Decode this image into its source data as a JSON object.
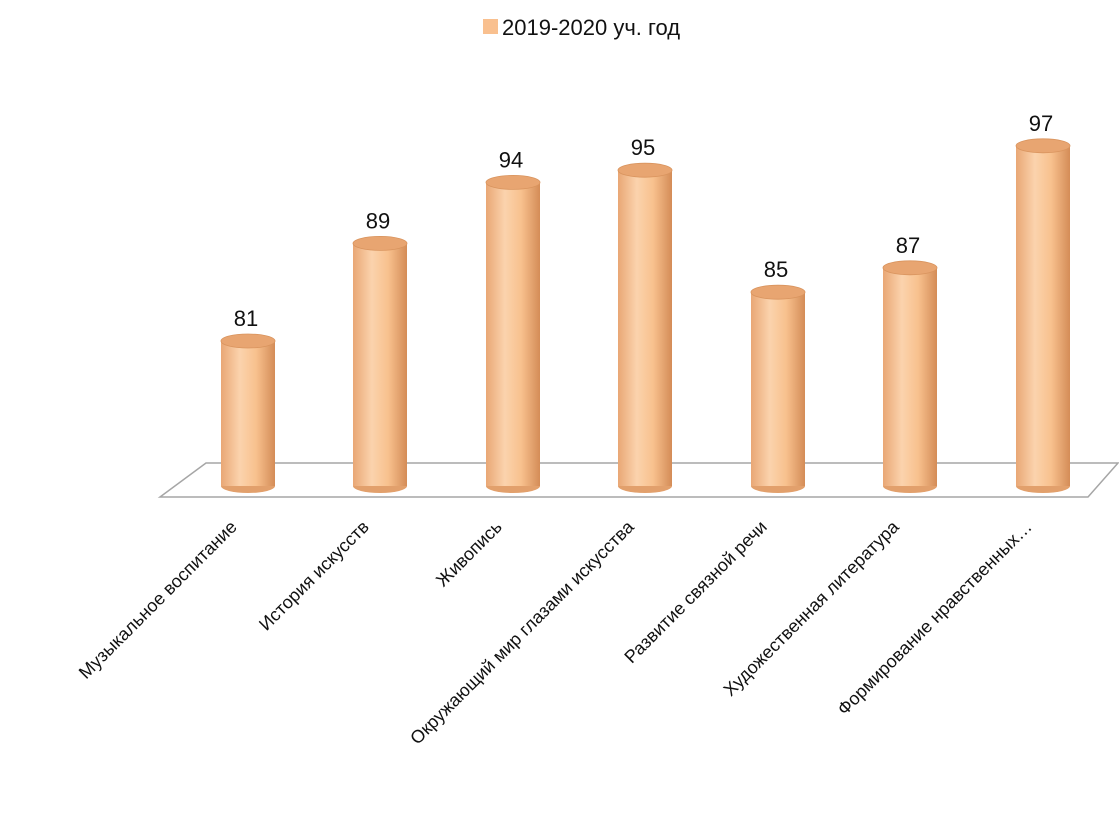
{
  "chart_data": {
    "type": "bar",
    "style": "3d-cylinder",
    "categories": [
      "Музыкальное воспитание",
      "История искусств",
      "Живопись",
      "Окружающий мир глазами искусства",
      "Развитие связной речи",
      "Художественная литература",
      "Формирование нравственных…"
    ],
    "series": [
      {
        "name": "2019-2020 уч. год",
        "values": [
          81,
          89,
          94,
          95,
          85,
          87,
          97
        ],
        "color": "#f9c08f"
      }
    ],
    "title": "",
    "xlabel": "",
    "ylabel": "",
    "ylim": [
      70,
      100
    ],
    "grid": false,
    "legend_position": "top",
    "data_labels": true
  }
}
